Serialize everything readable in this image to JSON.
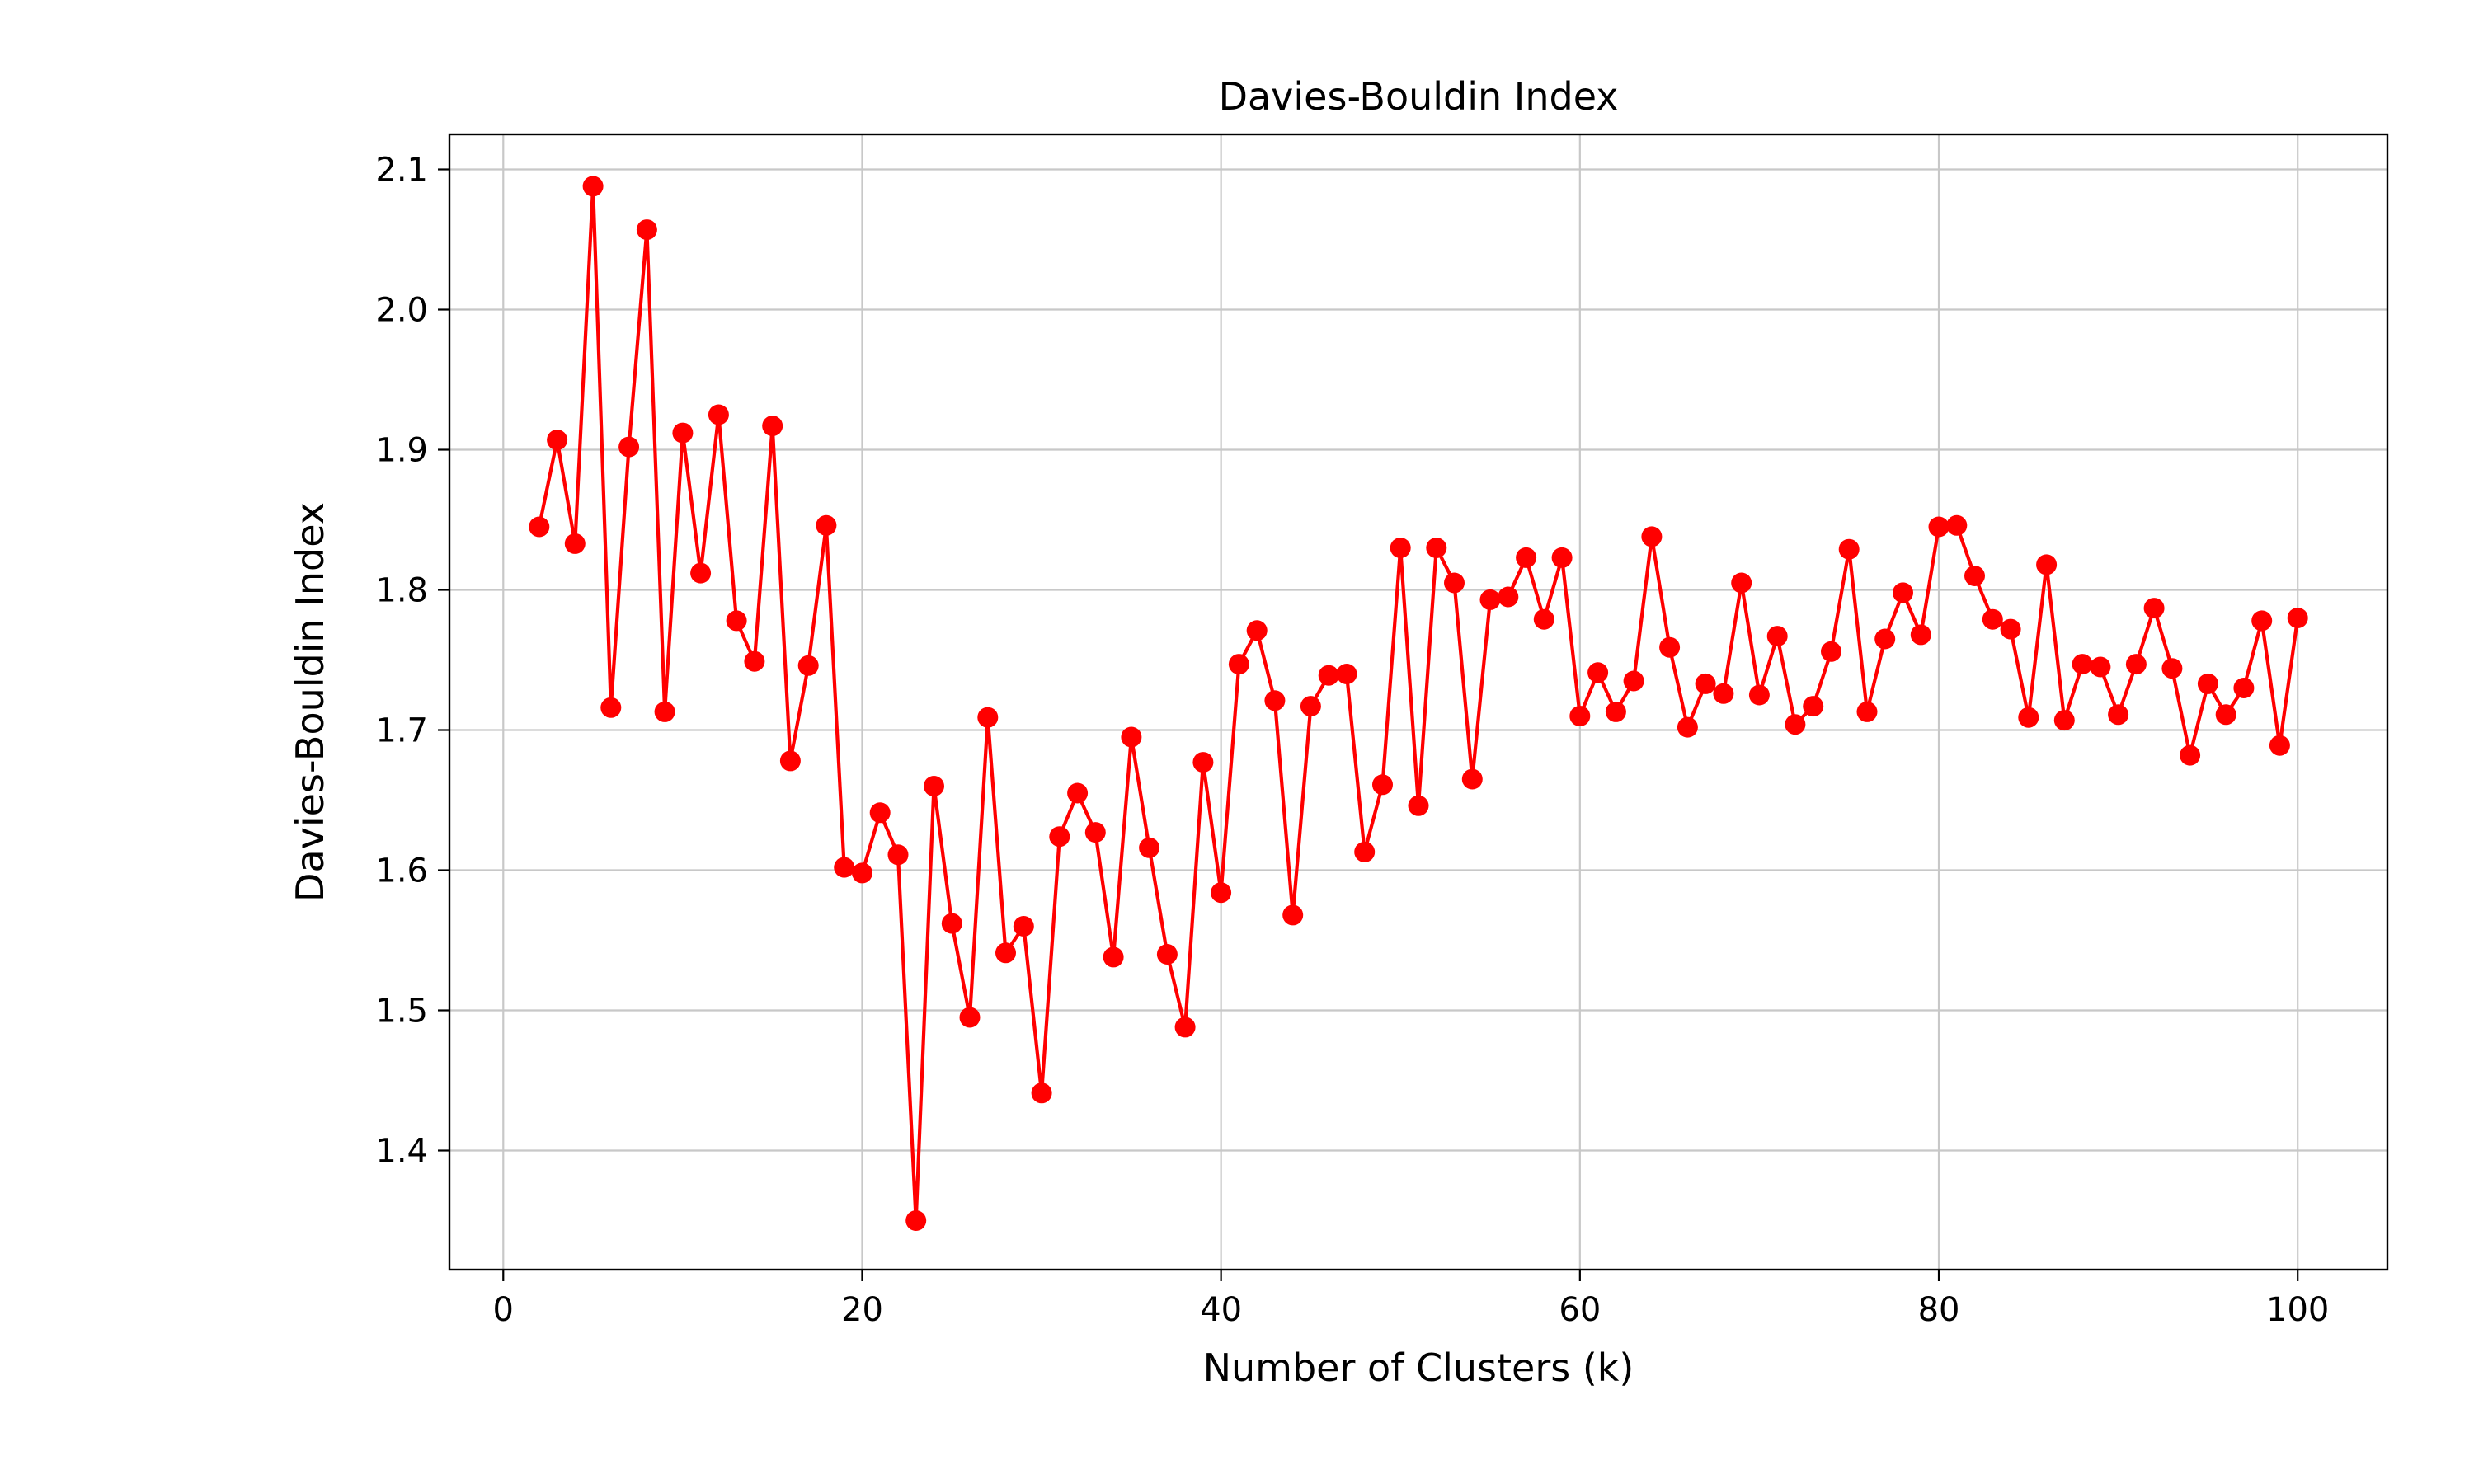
{
  "chart_data": {
    "type": "line",
    "title": "Davies-Bouldin Index",
    "xlabel": "Number of Clusters (k)",
    "ylabel": "Davies-Bouldin Index",
    "xlim": [
      -3,
      105
    ],
    "ylim": [
      1.315,
      2.125
    ],
    "xticks": [
      0,
      20,
      40,
      60,
      80,
      100
    ],
    "xtick_labels": [
      "0",
      "20",
      "40",
      "60",
      "80",
      "100"
    ],
    "yticks": [
      1.4,
      1.5,
      1.6,
      1.7,
      1.8,
      1.9,
      2.0,
      2.1
    ],
    "ytick_labels": [
      "1.4",
      "1.5",
      "1.6",
      "1.7",
      "1.8",
      "1.9",
      "2.0",
      "2.1"
    ],
    "grid": true,
    "color": "#ff0000",
    "marker": "circle",
    "series": [
      {
        "x": [
          2,
          3,
          4,
          5,
          6,
          7,
          8,
          9,
          10,
          11,
          12,
          13,
          14,
          15,
          16,
          17,
          18,
          19,
          20,
          21,
          22,
          23,
          24,
          25,
          26,
          27,
          28,
          29,
          30,
          31,
          32,
          33,
          34,
          35,
          36,
          37,
          38,
          39,
          40,
          41,
          42,
          43,
          44,
          45,
          46,
          47,
          48,
          49,
          50,
          51,
          52,
          53,
          54,
          55,
          56,
          57,
          58,
          59,
          60,
          61,
          62,
          63,
          64,
          65,
          66,
          67,
          68,
          69,
          70,
          71,
          72,
          73,
          74,
          75,
          76,
          77,
          78,
          79,
          80,
          81,
          82,
          83,
          84,
          85,
          86,
          87,
          88,
          89,
          90,
          91,
          92,
          93,
          94,
          95,
          96,
          97,
          98,
          99,
          100
        ],
        "values": [
          1.845,
          1.907,
          1.833,
          2.088,
          1.716,
          1.902,
          2.057,
          1.713,
          1.912,
          1.812,
          1.925,
          1.778,
          1.749,
          1.917,
          1.678,
          1.746,
          1.846,
          1.602,
          1.598,
          1.641,
          1.611,
          1.35,
          1.66,
          1.562,
          1.495,
          1.709,
          1.541,
          1.56,
          1.441,
          1.624,
          1.655,
          1.627,
          1.538,
          1.695,
          1.616,
          1.54,
          1.488,
          1.677,
          1.584,
          1.747,
          1.771,
          1.721,
          1.568,
          1.717,
          1.739,
          1.74,
          1.613,
          1.661,
          1.83,
          1.646,
          1.83,
          1.805,
          1.665,
          1.793,
          1.795,
          1.823,
          1.779,
          1.823,
          1.71,
          1.741,
          1.713,
          1.735,
          1.838,
          1.759,
          1.702,
          1.733,
          1.726,
          1.805,
          1.725,
          1.767,
          1.704,
          1.717,
          1.756,
          1.829,
          1.713,
          1.765,
          1.798,
          1.768,
          1.845,
          1.846,
          1.81,
          1.779,
          1.772,
          1.709,
          1.818,
          1.707,
          1.747,
          1.745,
          1.711,
          1.747,
          1.787,
          1.744,
          1.682,
          1.733,
          1.711,
          1.73,
          1.778,
          1.689,
          1.78
        ]
      }
    ]
  }
}
